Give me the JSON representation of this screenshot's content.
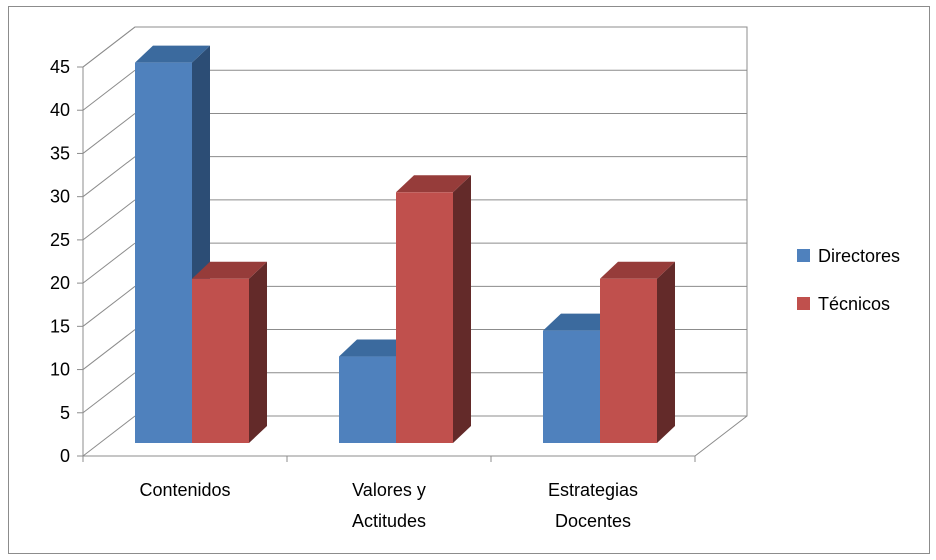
{
  "chart_data": {
    "type": "bar",
    "categories": [
      [
        "Contenidos"
      ],
      [
        "Valores y",
        "Actitudes"
      ],
      [
        "Estrategias",
        "Docentes"
      ]
    ],
    "series": [
      {
        "name": "Directores",
        "values": [
          44,
          10,
          13
        ],
        "color": "#4f81bd",
        "side_color": "#2c4d75",
        "top_color": "#3b6a9e"
      },
      {
        "name": "Técnicos",
        "values": [
          19,
          29,
          19
        ],
        "color": "#c0504d",
        "side_color": "#632a29",
        "top_color": "#963c3a"
      }
    ],
    "ylim": [
      0,
      45
    ],
    "yticks": [
      0,
      5,
      10,
      15,
      20,
      25,
      30,
      35,
      40,
      45
    ],
    "grid": true,
    "legend_position": "right",
    "view": "3d-columns"
  }
}
